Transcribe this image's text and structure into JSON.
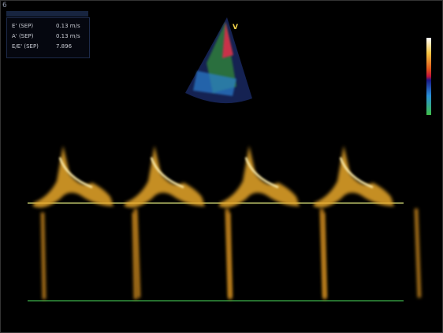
{
  "header": {
    "panel_number": "6"
  },
  "measurements": [
    {
      "label": "E' (SEP)",
      "value": "0.13 m/s"
    },
    {
      "label": "A' (SEP)",
      "value": "0.13 m/s"
    },
    {
      "label": "E/E' (SEP)",
      "value": "7.896"
    }
  ],
  "probe_marker": "V"
}
